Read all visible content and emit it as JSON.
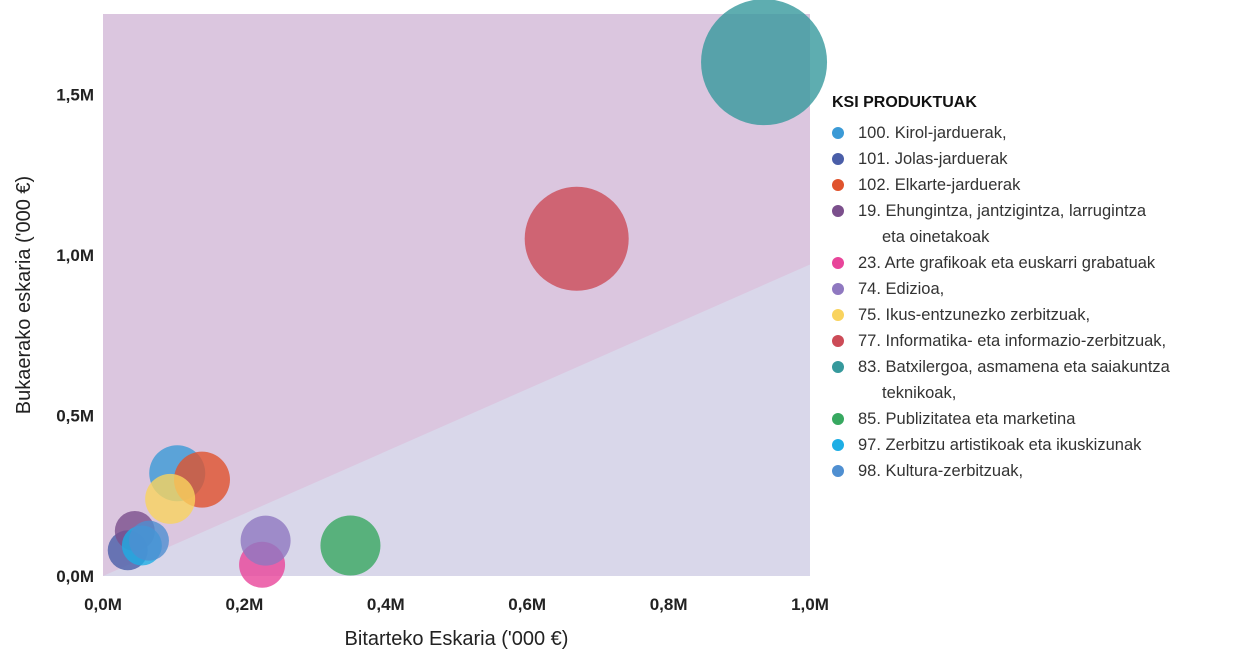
{
  "chart_data": {
    "type": "scatter",
    "xlabel": "Bitarteko Eskaria ('000 €)",
    "ylabel": "Bukaerako eskaria ('000 €)",
    "xlim": [
      0,
      1.0
    ],
    "ylim": [
      0,
      1.75
    ],
    "x_ticks": [
      "0,0M",
      "0,2M",
      "0,4M",
      "0,6M",
      "0,8M",
      "1,0M"
    ],
    "y_ticks": [
      "0,0M",
      "0,5M",
      "1,0M",
      "1,5M"
    ],
    "x_tick_values": [
      0,
      0.2,
      0.4,
      0.6,
      0.8,
      1.0
    ],
    "y_tick_values": [
      0,
      0.5,
      1.0,
      1.5
    ],
    "background_regions": [
      {
        "name": "above-diagonal",
        "color": "#dbc6df"
      },
      {
        "name": "below-diagonal",
        "color": "#d9d7ea"
      }
    ],
    "diagonal_end_y": 0.97,
    "legend_title": "KSI PRODUKTUAK",
    "series": [
      {
        "name": "100. Kirol-jarduerak,",
        "color": "#3b9ad6",
        "x": 0.105,
        "y": 0.32,
        "size": 28
      },
      {
        "name": "101. Jolas-jarduerak",
        "color": "#4a5ea8",
        "x": 0.035,
        "y": 0.08,
        "size": 20
      },
      {
        "name": "102. Elkarte-jarduerak",
        "color": "#e0532d",
        "x": 0.14,
        "y": 0.3,
        "size": 28
      },
      {
        "name": "19. Ehungintza, jantzigintza, larrugintza eta oinetakoak",
        "color": "#7b4f8c",
        "x": 0.045,
        "y": 0.14,
        "size": 20
      },
      {
        "name": "23. Arte grafikoak eta euskarri grabatuak",
        "color": "#e8459a",
        "x": 0.225,
        "y": 0.035,
        "size": 23
      },
      {
        "name": "74. Edizioa,",
        "color": "#8f78c0",
        "x": 0.23,
        "y": 0.11,
        "size": 25
      },
      {
        "name": "75. Ikus-entzunezko zerbitzuak,",
        "color": "#f9d35e",
        "x": 0.095,
        "y": 0.24,
        "size": 25
      },
      {
        "name": "77. Informatika- eta informazio-zerbitzuak,",
        "color": "#cc4b57",
        "x": 0.67,
        "y": 1.05,
        "size": 52
      },
      {
        "name": "83. Batxilergoa, asmamena eta saiakuntza teknikoak,",
        "color": "#36999c",
        "x": 0.935,
        "y": 1.6,
        "size": 63
      },
      {
        "name": "85. Publizitatea eta marketina",
        "color": "#37a860",
        "x": 0.35,
        "y": 0.095,
        "size": 30
      },
      {
        "name": "97. Zerbitzu artistikoak eta ikuskizunak",
        "color": "#1eaee5",
        "x": 0.055,
        "y": 0.095,
        "size": 20
      },
      {
        "name": "98. Kultura-zerbitzuak,",
        "color": "#4f8fd1",
        "x": 0.065,
        "y": 0.11,
        "size": 20
      }
    ],
    "legend_lines": [
      [
        "100. Kirol-jarduerak,"
      ],
      [
        "101. Jolas-jarduerak"
      ],
      [
        "102. Elkarte-jarduerak"
      ],
      [
        "19. Ehungintza, jantzigintza, larrugintza",
        "eta oinetakoak"
      ],
      [
        "23. Arte grafikoak eta euskarri grabatuak"
      ],
      [
        "74. Edizioa,"
      ],
      [
        "75. Ikus-entzunezko zerbitzuak,"
      ],
      [
        "77. Informatika- eta informazio-zerbitzuak,"
      ],
      [
        "83. Batxilergoa, asmamena eta saiakuntza",
        "teknikoak,"
      ],
      [
        "85. Publizitatea eta marketina"
      ],
      [
        "97. Zerbitzu artistikoak eta ikuskizunak"
      ],
      [
        "98. Kultura-zerbitzuak,"
      ]
    ],
    "bubble_opacity": 0.8
  }
}
